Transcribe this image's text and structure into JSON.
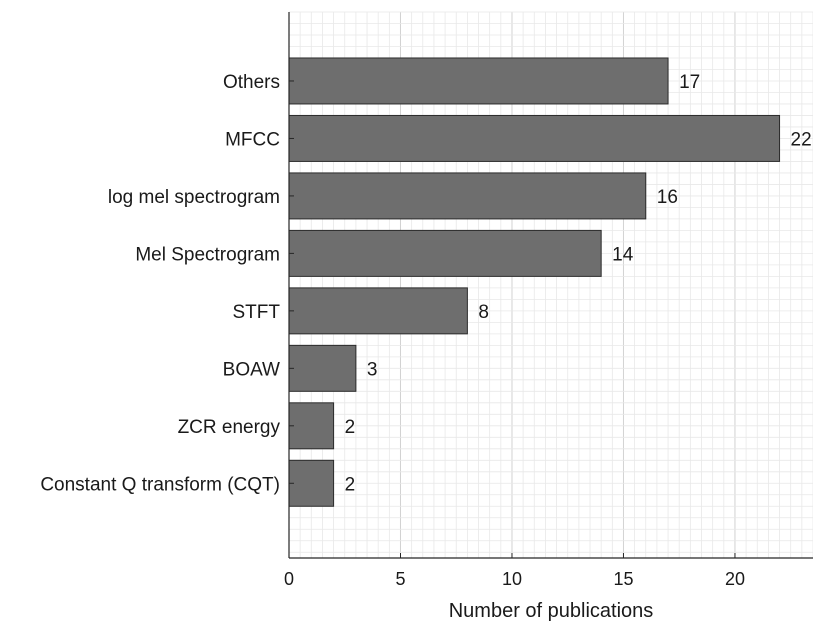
{
  "chart_data": {
    "type": "bar",
    "orientation": "horizontal",
    "categories": [
      "Others",
      "MFCC",
      "log mel spectrogram",
      "Mel Spectrogram",
      "STFT",
      "BOAW",
      "ZCR energy",
      "Constant Q transform (CQT)"
    ],
    "values": [
      17,
      22,
      16,
      14,
      8,
      3,
      2,
      2
    ],
    "data_labels": [
      "17",
      "22",
      "16",
      "14",
      "8",
      "3",
      "2",
      "2"
    ],
    "title": "",
    "xlabel": "Number of publications",
    "ylabel": "",
    "xlim": [
      0,
      23.5
    ],
    "xticks": [
      0,
      5,
      10,
      15,
      20
    ],
    "grid": "major and minor",
    "colors": {
      "bar_fill": "#6e6e6e",
      "bar_edge": "#2b2b2b",
      "grid_major": "#d2d2d2",
      "grid_minor": "#e8e8e8",
      "axis": "#262626"
    }
  }
}
